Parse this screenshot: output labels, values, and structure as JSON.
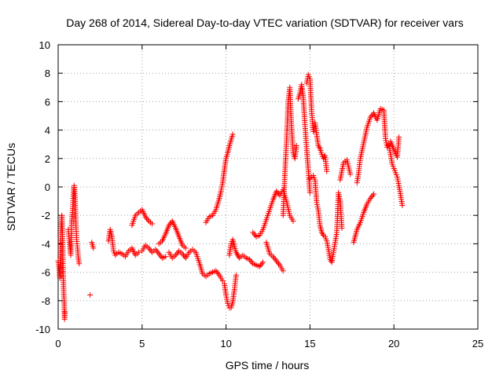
{
  "chart_data": {
    "type": "scatter",
    "title": "Day 268 of 2014, Sidereal Day-to-day VTEC variation (SDTVAR) for receiver vars",
    "xlabel": "GPS time / hours",
    "ylabel": "SDTVAR / TECUs",
    "xlim": [
      0,
      25
    ],
    "ylim": [
      -10,
      10
    ],
    "xticks": [
      0,
      5,
      10,
      15,
      20,
      25
    ],
    "yticks": [
      -10,
      -8,
      -6,
      -4,
      -2,
      0,
      2,
      4,
      6,
      8,
      10
    ],
    "grid": true,
    "marker": "+",
    "color": "#ff0000",
    "series": [
      {
        "name": "SDTVAR",
        "points": [
          [
            0.0,
            -5.2
          ],
          [
            0.05,
            -5.6
          ],
          [
            0.1,
            -6.4
          ],
          [
            0.14,
            -4.5
          ],
          [
            0.18,
            -2.8
          ],
          [
            0.22,
            -2.0
          ],
          [
            0.26,
            -3.5
          ],
          [
            0.3,
            -6.2
          ],
          [
            0.33,
            -7.4
          ],
          [
            0.36,
            -8.1
          ],
          [
            0.38,
            -9.3
          ],
          [
            0.4,
            -8.8
          ],
          [
            0.6,
            -3.0
          ],
          [
            0.65,
            -3.6
          ],
          [
            0.7,
            -4.2
          ],
          [
            0.75,
            -4.8
          ],
          [
            0.8,
            -2.6
          ],
          [
            0.85,
            -1.8
          ],
          [
            0.9,
            -0.8
          ],
          [
            0.95,
            0.1
          ],
          [
            1.0,
            -0.6
          ],
          [
            1.05,
            -2.4
          ],
          [
            1.1,
            -3.7
          ],
          [
            1.15,
            -4.3
          ],
          [
            1.2,
            -5.0
          ],
          [
            1.25,
            -5.4
          ],
          [
            1.9,
            -7.6
          ],
          [
            2.0,
            -3.9
          ],
          [
            2.1,
            -4.3
          ],
          [
            3.0,
            -3.8
          ],
          [
            3.1,
            -3.0
          ],
          [
            3.2,
            -3.5
          ],
          [
            3.3,
            -4.5
          ],
          [
            3.4,
            -4.8
          ],
          [
            3.6,
            -4.6
          ],
          [
            3.8,
            -4.7
          ],
          [
            4.0,
            -4.9
          ],
          [
            4.2,
            -4.5
          ],
          [
            4.4,
            -4.3
          ],
          [
            4.6,
            -4.8
          ],
          [
            4.8,
            -4.6
          ],
          [
            4.4,
            -2.7
          ],
          [
            4.6,
            -2.0
          ],
          [
            4.8,
            -1.8
          ],
          [
            5.0,
            -1.6
          ],
          [
            5.2,
            -2.1
          ],
          [
            5.4,
            -2.4
          ],
          [
            5.6,
            -2.6
          ],
          [
            5.0,
            -4.5
          ],
          [
            5.2,
            -4.1
          ],
          [
            5.4,
            -4.3
          ],
          [
            5.6,
            -4.6
          ],
          [
            5.8,
            -4.4
          ],
          [
            6.0,
            -4.7
          ],
          [
            6.2,
            -5.0
          ],
          [
            6.4,
            -4.9
          ],
          [
            6.0,
            -4.0
          ],
          [
            6.2,
            -3.8
          ],
          [
            6.4,
            -3.3
          ],
          [
            6.6,
            -2.7
          ],
          [
            6.8,
            -2.4
          ],
          [
            7.0,
            -2.9
          ],
          [
            7.2,
            -3.5
          ],
          [
            7.4,
            -4.1
          ],
          [
            7.6,
            -4.3
          ],
          [
            6.6,
            -4.6
          ],
          [
            6.8,
            -5.0
          ],
          [
            7.0,
            -4.8
          ],
          [
            7.2,
            -4.5
          ],
          [
            7.4,
            -4.7
          ],
          [
            7.6,
            -5.0
          ],
          [
            7.8,
            -4.6
          ],
          [
            8.0,
            -4.4
          ],
          [
            8.2,
            -4.6
          ],
          [
            8.4,
            -5.3
          ],
          [
            8.6,
            -6.1
          ],
          [
            8.8,
            -6.3
          ],
          [
            9.0,
            -6.1
          ],
          [
            9.2,
            -6.0
          ],
          [
            9.4,
            -5.9
          ],
          [
            9.6,
            -6.2
          ],
          [
            9.8,
            -6.6
          ],
          [
            8.8,
            -2.5
          ],
          [
            9.0,
            -2.1
          ],
          [
            9.2,
            -2.0
          ],
          [
            9.4,
            -1.6
          ],
          [
            9.5,
            -1.2
          ],
          [
            9.6,
            -0.8
          ],
          [
            9.7,
            -0.3
          ],
          [
            9.8,
            0.3
          ],
          [
            9.9,
            1.2
          ],
          [
            10.0,
            2.0
          ],
          [
            10.1,
            2.4
          ],
          [
            10.2,
            2.9
          ],
          [
            10.3,
            3.3
          ],
          [
            10.4,
            3.7
          ],
          [
            9.9,
            -6.8
          ],
          [
            10.0,
            -7.6
          ],
          [
            10.1,
            -8.2
          ],
          [
            10.2,
            -8.5
          ],
          [
            10.3,
            -8.5
          ],
          [
            10.4,
            -8.1
          ],
          [
            10.5,
            -7.2
          ],
          [
            10.6,
            -6.2
          ],
          [
            10.2,
            -4.8
          ],
          [
            10.3,
            -4.0
          ],
          [
            10.4,
            -3.7
          ],
          [
            10.5,
            -4.2
          ],
          [
            10.6,
            -4.6
          ],
          [
            10.7,
            -4.8
          ],
          [
            10.8,
            -5.0
          ],
          [
            11.0,
            -4.8
          ],
          [
            11.2,
            -5.0
          ],
          [
            11.4,
            -5.1
          ],
          [
            11.6,
            -5.4
          ],
          [
            11.8,
            -5.5
          ],
          [
            12.0,
            -5.6
          ],
          [
            12.2,
            -5.3
          ],
          [
            11.6,
            -3.2
          ],
          [
            11.8,
            -3.5
          ],
          [
            12.0,
            -3.4
          ],
          [
            12.2,
            -3.0
          ],
          [
            12.4,
            -2.3
          ],
          [
            12.6,
            -1.6
          ],
          [
            12.8,
            -0.9
          ],
          [
            13.0,
            -0.3
          ],
          [
            13.2,
            -0.6
          ],
          [
            13.4,
            -0.2
          ],
          [
            13.6,
            -1.0
          ],
          [
            13.8,
            -2.0
          ],
          [
            14.0,
            -2.4
          ],
          [
            12.4,
            -3.9
          ],
          [
            12.6,
            -4.7
          ],
          [
            12.8,
            -4.9
          ],
          [
            13.0,
            -5.2
          ],
          [
            13.2,
            -5.5
          ],
          [
            13.4,
            -5.9
          ],
          [
            13.4,
            -2.0
          ],
          [
            13.5,
            0.8
          ],
          [
            13.6,
            3.1
          ],
          [
            13.7,
            5.9
          ],
          [
            13.8,
            7.0
          ],
          [
            13.9,
            4.2
          ],
          [
            14.0,
            2.4
          ],
          [
            14.1,
            2.0
          ],
          [
            14.2,
            2.9
          ],
          [
            14.3,
            6.2
          ],
          [
            14.4,
            6.6
          ],
          [
            14.5,
            7.2
          ],
          [
            14.6,
            6.3
          ],
          [
            14.7,
            4.4
          ],
          [
            14.8,
            2.7
          ],
          [
            14.9,
            1.2
          ],
          [
            15.0,
            -0.4
          ],
          [
            14.8,
            7.3
          ],
          [
            14.9,
            7.9
          ],
          [
            15.0,
            7.6
          ],
          [
            15.1,
            5.3
          ],
          [
            15.2,
            3.9
          ],
          [
            15.3,
            4.5
          ],
          [
            15.4,
            3.7
          ],
          [
            15.5,
            2.9
          ],
          [
            15.6,
            2.7
          ],
          [
            15.7,
            2.3
          ],
          [
            15.8,
            2.0
          ],
          [
            15.9,
            2.2
          ],
          [
            16.0,
            1.1
          ],
          [
            15.0,
            0.6
          ],
          [
            15.1,
            0.7
          ],
          [
            15.2,
            0.8
          ],
          [
            15.3,
            0.5
          ],
          [
            15.4,
            -1.1
          ],
          [
            15.5,
            -1.7
          ],
          [
            15.6,
            -2.7
          ],
          [
            15.7,
            -3.2
          ],
          [
            15.8,
            -3.4
          ],
          [
            15.9,
            -3.5
          ],
          [
            16.0,
            -3.8
          ],
          [
            16.1,
            -4.4
          ],
          [
            16.2,
            -5.1
          ],
          [
            16.3,
            -5.3
          ],
          [
            16.4,
            -4.6
          ],
          [
            16.5,
            -3.9
          ],
          [
            16.6,
            -3.2
          ],
          [
            16.7,
            -0.4
          ],
          [
            16.8,
            -1.0
          ],
          [
            16.9,
            -2.9
          ],
          [
            16.8,
            0.5
          ],
          [
            17.0,
            1.7
          ],
          [
            17.2,
            1.9
          ],
          [
            17.4,
            0.9
          ],
          [
            17.6,
            -3.9
          ],
          [
            17.8,
            -3.0
          ],
          [
            18.0,
            -2.5
          ],
          [
            18.2,
            -1.8
          ],
          [
            18.4,
            -1.2
          ],
          [
            18.6,
            -0.8
          ],
          [
            18.8,
            -0.5
          ],
          [
            17.8,
            0.3
          ],
          [
            17.9,
            1.0
          ],
          [
            18.0,
            2.0
          ],
          [
            18.2,
            3.1
          ],
          [
            18.4,
            4.2
          ],
          [
            18.6,
            4.9
          ],
          [
            18.8,
            5.2
          ],
          [
            19.0,
            4.7
          ],
          [
            19.2,
            5.5
          ],
          [
            19.4,
            5.4
          ],
          [
            19.5,
            3.4
          ],
          [
            19.6,
            2.8
          ],
          [
            19.7,
            3.0
          ],
          [
            19.8,
            2.3
          ],
          [
            19.9,
            1.6
          ],
          [
            20.0,
            1.3
          ],
          [
            20.1,
            1.0
          ],
          [
            20.2,
            0.7
          ],
          [
            20.3,
            0.1
          ],
          [
            20.4,
            -0.6
          ],
          [
            20.5,
            -1.3
          ],
          [
            19.8,
            3.2
          ],
          [
            20.0,
            2.6
          ],
          [
            20.2,
            2.1
          ],
          [
            20.3,
            3.5
          ]
        ]
      }
    ]
  }
}
